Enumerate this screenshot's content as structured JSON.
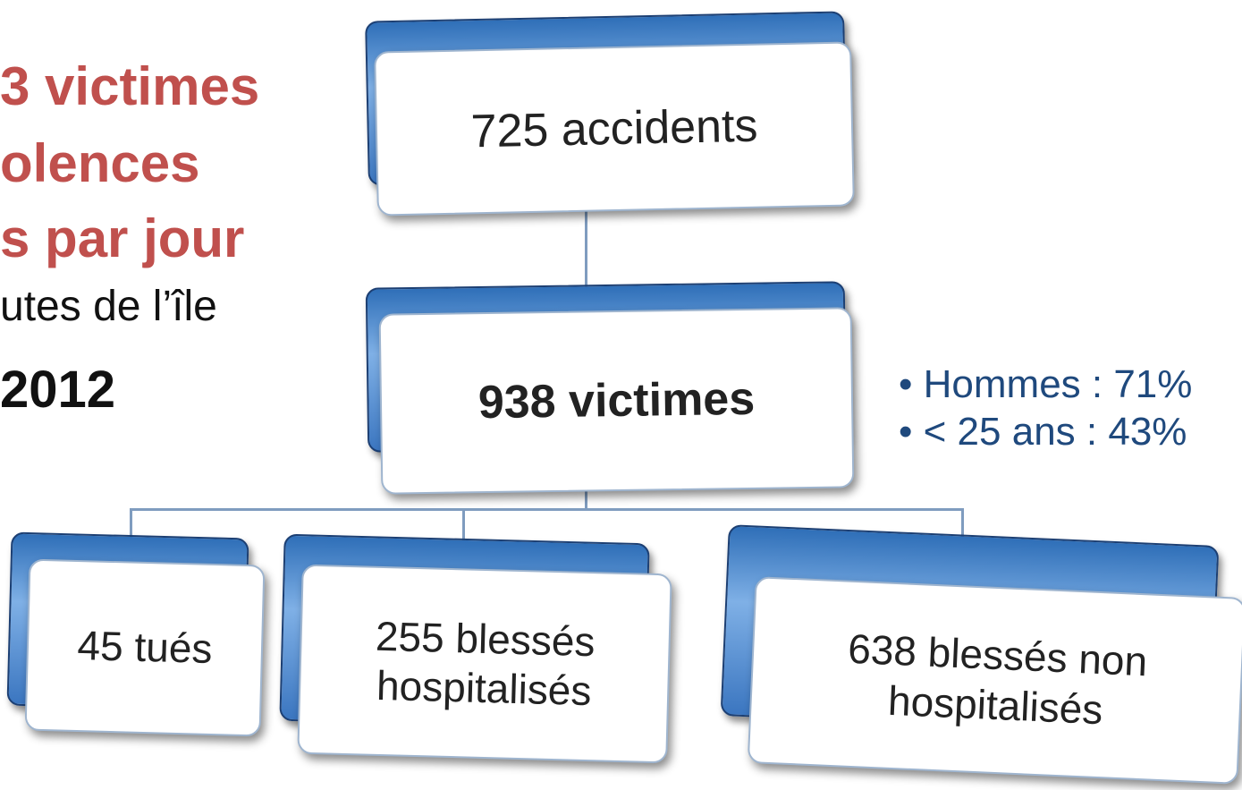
{
  "side_text": [
    "3 victimes",
    "olences",
    "s par jour",
    "utes de l’île",
    "2012"
  ],
  "nodes": [
    {
      "lines": [
        "725 accidents"
      ]
    },
    {
      "lines": [
        "938 victimes"
      ]
    },
    {
      "lines": [
        "45 tués"
      ]
    },
    {
      "lines": [
        "255 blessés",
        "hospitalisés"
      ]
    },
    {
      "lines": [
        "638 blessés non",
        "hospitalisés"
      ]
    }
  ],
  "bullets": [
    "Hommes : 71%",
    "< 25 ans : 43%"
  ]
}
